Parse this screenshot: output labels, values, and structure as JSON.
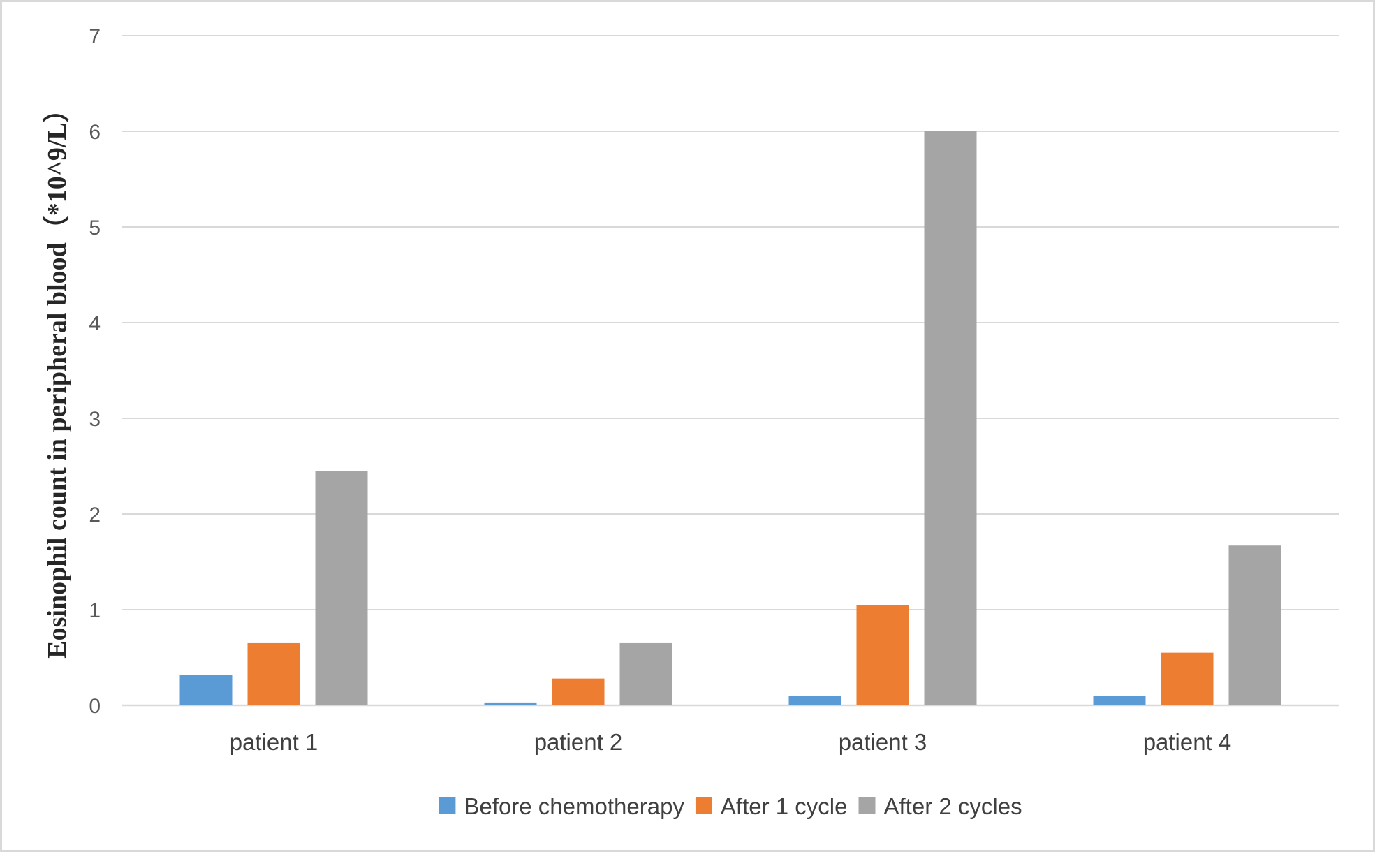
{
  "chart_data": {
    "type": "bar",
    "title": "",
    "xlabel": "",
    "ylabel": "Eosinophil count in peripheral blood（*10^9/L）",
    "categories": [
      "patient 1",
      "patient 2",
      "patient 3",
      "patient 4"
    ],
    "series": [
      {
        "name": "Before chemotherapy",
        "color": "#5b9bd5",
        "values": [
          0.32,
          0.03,
          0.1,
          0.1
        ]
      },
      {
        "name": "After 1 cycle",
        "color": "#ed7d31",
        "values": [
          0.65,
          0.28,
          1.05,
          0.55
        ]
      },
      {
        "name": "After 2 cycles",
        "color": "#a5a5a5",
        "values": [
          2.45,
          0.65,
          6.0,
          1.67
        ]
      }
    ],
    "ylim": [
      0,
      7
    ],
    "yticks": [
      0,
      1,
      2,
      3,
      4,
      5,
      6,
      7
    ],
    "grid": true,
    "legend_position": "bottom"
  }
}
